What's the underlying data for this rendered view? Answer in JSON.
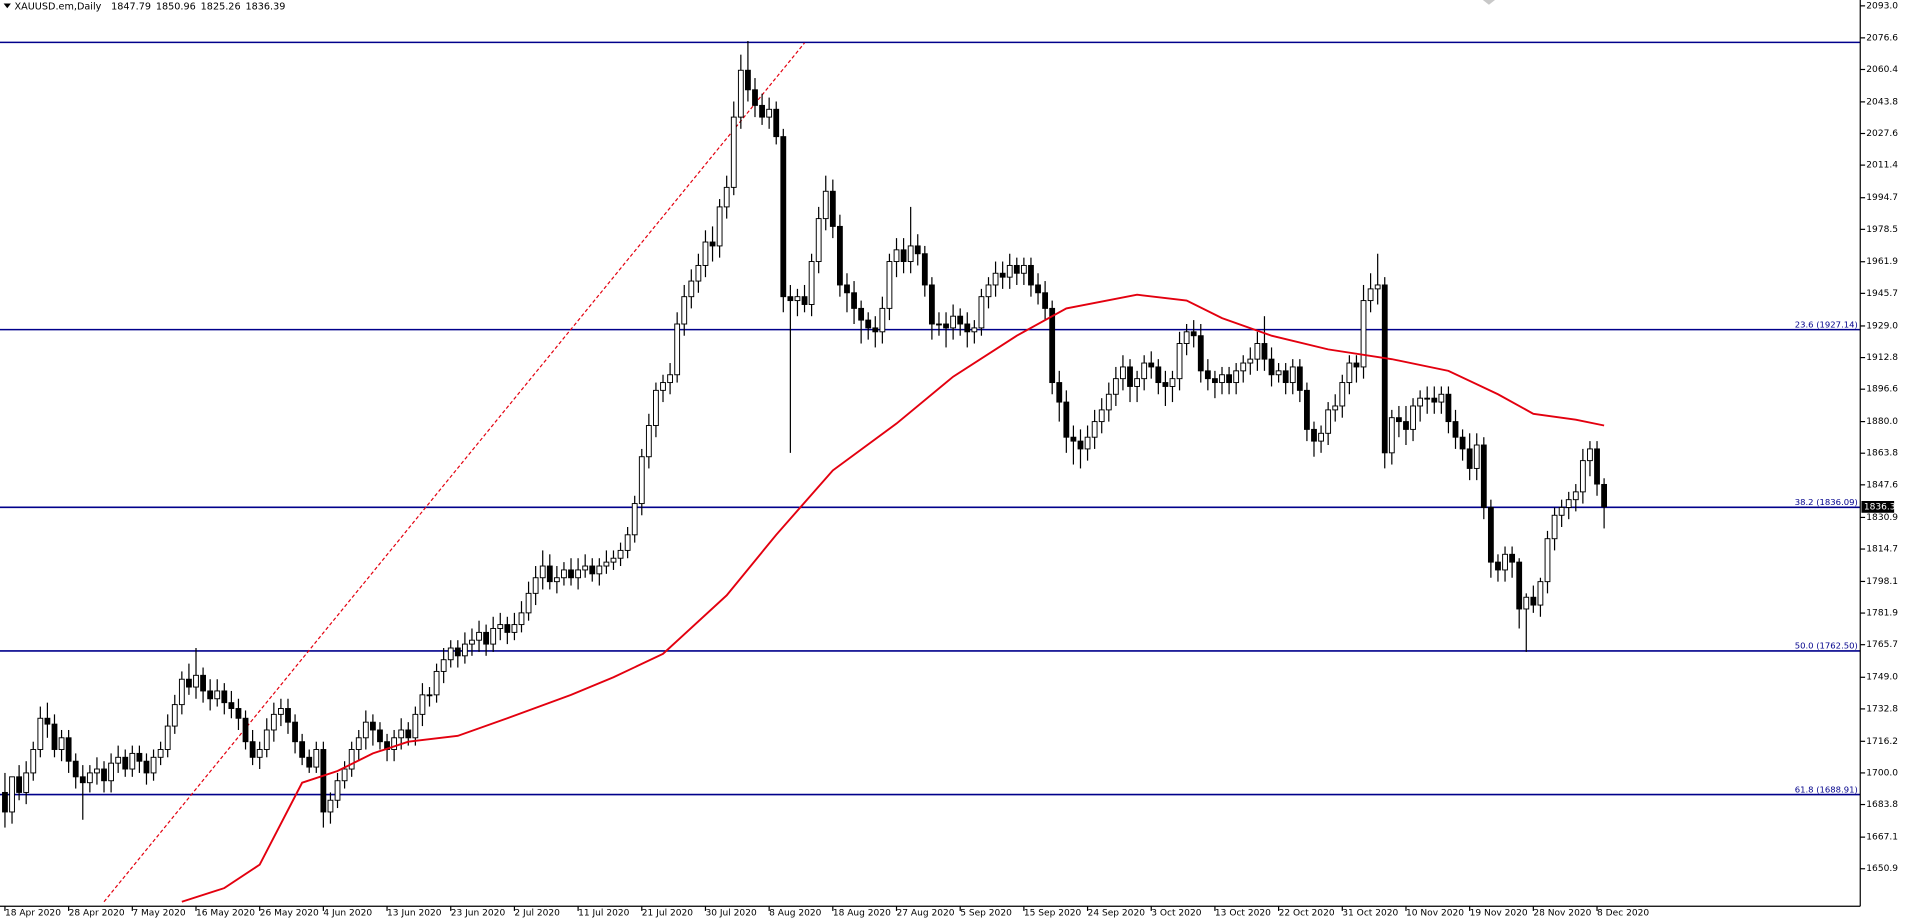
{
  "chart_data": {
    "type": "candlestick",
    "title": "XAUUSD.em,Daily",
    "header_values": [
      1847.79,
      1850.96,
      1825.26,
      1836.39
    ],
    "xlim": [
      -0.7,
      262.2
    ],
    "xticks": [
      {
        "value": 0,
        "label": "18 Apr 2020"
      },
      {
        "value": 9,
        "label": "28 Apr 2020"
      },
      {
        "value": 18,
        "label": "7 May 2020"
      },
      {
        "value": 27,
        "label": "16 May 2020"
      },
      {
        "value": 36,
        "label": "26 May 2020"
      },
      {
        "value": 45,
        "label": "4 Jun 2020"
      },
      {
        "value": 54,
        "label": "13 Jun 2020"
      },
      {
        "value": 63,
        "label": "23 Jun 2020"
      },
      {
        "value": 72,
        "label": "2 Jul 2020"
      },
      {
        "value": 81,
        "label": "11 Jul 2020"
      },
      {
        "value": 90,
        "label": "21 Jul 2020"
      },
      {
        "value": 99,
        "label": "30 Jul 2020"
      },
      {
        "value": 108,
        "label": "8 Aug 2020"
      },
      {
        "value": 117,
        "label": "18 Aug 2020"
      },
      {
        "value": 126,
        "label": "27 Aug 2020"
      },
      {
        "value": 135,
        "label": "5 Sep 2020"
      },
      {
        "value": 144,
        "label": "15 Sep 2020"
      },
      {
        "value": 153,
        "label": "24 Sep 2020"
      },
      {
        "value": 162,
        "label": "3 Oct 2020"
      },
      {
        "value": 171,
        "label": "13 Oct 2020"
      },
      {
        "value": 180,
        "label": "22 Oct 2020"
      },
      {
        "value": 189,
        "label": "31 Oct 2020"
      },
      {
        "value": 198,
        "label": "10 Nov 2020"
      },
      {
        "value": 207,
        "label": "19 Nov 2020"
      },
      {
        "value": 216,
        "label": "28 Nov 2020"
      },
      {
        "value": 225,
        "label": "8 Dec 2020"
      }
    ],
    "ylim": [
      1631.7,
      2096.0
    ],
    "yticks": [
      {
        "value": 2093,
        "label": "2093.0"
      },
      2076.6,
      2060.4,
      2043.8,
      2027.6,
      2011.4,
      1994.7,
      1978.5,
      1961.9,
      1945.7,
      {
        "value": 1929,
        "label": "1929.0"
      },
      1912.8,
      1896.6,
      {
        "value": 1880,
        "label": "1880.0"
      },
      1863.8,
      1847.6,
      1830.9,
      1814.7,
      1798.1,
      1781.9,
      1765.7,
      {
        "value": 1749,
        "label": "1749.0"
      },
      1732.8,
      1716.2,
      {
        "value": 1700,
        "label": "1700.0"
      },
      1683.8,
      1667.1,
      1650.9
    ],
    "candle_colors": {
      "up": "#ffffff",
      "down": "#000000",
      "wick": "#000000"
    },
    "open": [
      1690,
      1680,
      1698,
      1690,
      1700,
      1712,
      1728,
      1725,
      1712,
      1718,
      1706,
      1698,
      1695,
      1700,
      1702,
      1696,
      1705,
      1708,
      1702,
      1710,
      1706,
      1700,
      1708,
      1712,
      1724,
      1735,
      1748,
      1744,
      1750,
      1742,
      1738,
      1742,
      1736,
      1733,
      1728,
      1716,
      1708,
      1712,
      1722,
      1730,
      1733,
      1726,
      1716,
      1708,
      1703,
      1712,
      1680,
      1686,
      1696,
      1702,
      1712,
      1718,
      1726,
      1722,
      1716,
      1712,
      1718,
      1722,
      1718,
      1730,
      1740,
      1740,
      1752,
      1758,
      1764,
      1760,
      1766,
      1768,
      1772,
      1766,
      1774,
      1776,
      1772,
      1776,
      1782,
      1792,
      1800,
      1806,
      1798,
      1800,
      1804,
      1800,
      1804,
      1806,
      1802,
      1806,
      1808,
      1810,
      1814,
      1822,
      1838,
      1862,
      1878,
      1896,
      1900,
      1904,
      1930,
      1944,
      1952,
      1960,
      1972,
      1970,
      1990,
      2000,
      2036,
      2060,
      2050,
      2042,
      2036,
      2040,
      2026,
      1944,
      1942,
      1944,
      1940,
      1962,
      1984,
      1998,
      1980,
      1950,
      1946,
      1938,
      1932,
      1928,
      1926,
      1938,
      1962,
      1968,
      1962,
      1970,
      1966,
      1950,
      1930,
      1930,
      1928,
      1934,
      1930,
      1926,
      1928,
      1944,
      1950,
      1956,
      1954,
      1960,
      1956,
      1960,
      1950,
      1946,
      1938,
      1900,
      1890,
      1872,
      1870,
      1866,
      1872,
      1880,
      1886,
      1894,
      1902,
      1908,
      1898,
      1902,
      1910,
      1908,
      1900,
      1898,
      1902,
      1920,
      1926,
      1924,
      1906,
      1902,
      1900,
      1904,
      1900,
      1906,
      1910,
      1912,
      1920,
      1912,
      1904,
      1906,
      1900,
      1908,
      1896,
      1876,
      1870,
      1874,
      1886,
      1888,
      1900,
      1910,
      1908,
      1942,
      1948,
      1950,
      1864,
      1882,
      1880,
      1876,
      1888,
      1892,
      1892,
      1890,
      1894,
      1880,
      1872,
      1866,
      1856,
      1868,
      1836,
      1808,
      1804,
      1812,
      1808,
      1784,
      1790,
      1786,
      1798,
      1820,
      1832,
      1836,
      1840,
      1844,
      1860,
      1866,
      1847.79
    ],
    "high": [
      1700,
      1694,
      1704,
      1706,
      1716,
      1734,
      1736,
      1730,
      1722,
      1722,
      1710,
      1704,
      1704,
      1708,
      1706,
      1710,
      1714,
      1712,
      1714,
      1714,
      1710,
      1712,
      1716,
      1730,
      1740,
      1752,
      1756,
      1764,
      1754,
      1748,
      1748,
      1746,
      1742,
      1738,
      1732,
      1722,
      1716,
      1728,
      1736,
      1738,
      1738,
      1730,
      1720,
      1712,
      1716,
      1716,
      1690,
      1700,
      1706,
      1716,
      1722,
      1732,
      1730,
      1726,
      1720,
      1722,
      1728,
      1726,
      1734,
      1746,
      1744,
      1756,
      1764,
      1768,
      1768,
      1772,
      1774,
      1778,
      1776,
      1780,
      1782,
      1780,
      1782,
      1788,
      1798,
      1806,
      1814,
      1812,
      1806,
      1808,
      1810,
      1810,
      1812,
      1810,
      1810,
      1814,
      1814,
      1818,
      1826,
      1842,
      1866,
      1884,
      1900,
      1904,
      1910,
      1936,
      1950,
      1958,
      1966,
      1978,
      1980,
      1994,
      2006,
      2044,
      2068,
      2075,
      2056,
      2048,
      2046,
      2044,
      2030,
      1950,
      1948,
      1950,
      1966,
      1990,
      2006,
      2004,
      1986,
      1956,
      1952,
      1942,
      1936,
      1934,
      1944,
      1966,
      1974,
      1974,
      1990,
      1976,
      1970,
      1954,
      1936,
      1936,
      1940,
      1938,
      1936,
      1932,
      1948,
      1954,
      1962,
      1962,
      1966,
      1964,
      1964,
      1964,
      1956,
      1952,
      1942,
      1906,
      1896,
      1878,
      1876,
      1878,
      1886,
      1892,
      1900,
      1908,
      1914,
      1912,
      1906,
      1914,
      1916,
      1912,
      1906,
      1906,
      1926,
      1930,
      1932,
      1930,
      1912,
      1906,
      1908,
      1908,
      1910,
      1914,
      1918,
      1926,
      1934,
      1918,
      1910,
      1910,
      1912,
      1912,
      1900,
      1880,
      1878,
      1890,
      1894,
      1904,
      1914,
      1914,
      1950,
      1956,
      1966,
      1954,
      1886,
      1888,
      1888,
      1892,
      1896,
      1898,
      1898,
      1898,
      1898,
      1886,
      1876,
      1874,
      1874,
      1872,
      1840,
      1812,
      1816,
      1816,
      1810,
      1792,
      1796,
      1800,
      1824,
      1836,
      1840,
      1844,
      1848,
      1866,
      1870,
      1870,
      1850.96
    ],
    "low": [
      1672,
      1674,
      1686,
      1684,
      1696,
      1708,
      1718,
      1708,
      1706,
      1700,
      1692,
      1676,
      1690,
      1694,
      1690,
      1690,
      1700,
      1698,
      1698,
      1700,
      1694,
      1696,
      1704,
      1708,
      1720,
      1730,
      1740,
      1738,
      1736,
      1732,
      1734,
      1730,
      1728,
      1722,
      1712,
      1704,
      1702,
      1708,
      1716,
      1724,
      1720,
      1710,
      1704,
      1700,
      1700,
      1672,
      1674,
      1682,
      1692,
      1698,
      1706,
      1712,
      1714,
      1712,
      1706,
      1706,
      1712,
      1714,
      1714,
      1724,
      1734,
      1736,
      1746,
      1754,
      1754,
      1756,
      1760,
      1762,
      1760,
      1762,
      1768,
      1766,
      1768,
      1772,
      1778,
      1786,
      1794,
      1794,
      1792,
      1796,
      1796,
      1794,
      1800,
      1798,
      1796,
      1802,
      1804,
      1806,
      1810,
      1818,
      1832,
      1856,
      1872,
      1890,
      1894,
      1900,
      1924,
      1938,
      1946,
      1954,
      1962,
      1964,
      1984,
      1996,
      2030,
      2044,
      2036,
      2032,
      2030,
      2022,
      1936,
      1864,
      1934,
      1936,
      1934,
      1956,
      1978,
      1974,
      1944,
      1936,
      1930,
      1920,
      1922,
      1918,
      1920,
      1932,
      1954,
      1956,
      1956,
      1960,
      1944,
      1922,
      1924,
      1918,
      1922,
      1924,
      1918,
      1920,
      1924,
      1938,
      1944,
      1948,
      1948,
      1950,
      1950,
      1944,
      1940,
      1932,
      1894,
      1880,
      1864,
      1858,
      1856,
      1860,
      1866,
      1874,
      1880,
      1888,
      1896,
      1890,
      1890,
      1896,
      1902,
      1894,
      1888,
      1890,
      1896,
      1914,
      1918,
      1900,
      1896,
      1892,
      1894,
      1894,
      1894,
      1900,
      1904,
      1906,
      1906,
      1898,
      1900,
      1894,
      1894,
      1890,
      1870,
      1862,
      1864,
      1868,
      1880,
      1882,
      1894,
      1900,
      1902,
      1936,
      1940,
      1856,
      1858,
      1872,
      1868,
      1870,
      1880,
      1884,
      1884,
      1884,
      1874,
      1866,
      1860,
      1850,
      1850,
      1830,
      1800,
      1798,
      1798,
      1800,
      1774,
      1762,
      1782,
      1780,
      1792,
      1814,
      1826,
      1830,
      1834,
      1838,
      1852,
      1842,
      1825.26
    ],
    "close": [
      1680,
      1698,
      1690,
      1700,
      1712,
      1728,
      1725,
      1712,
      1718,
      1706,
      1698,
      1695,
      1700,
      1702,
      1696,
      1705,
      1708,
      1702,
      1710,
      1706,
      1700,
      1708,
      1712,
      1724,
      1735,
      1748,
      1744,
      1750,
      1742,
      1738,
      1742,
      1736,
      1733,
      1728,
      1716,
      1708,
      1712,
      1722,
      1730,
      1733,
      1726,
      1716,
      1708,
      1703,
      1712,
      1680,
      1686,
      1696,
      1702,
      1712,
      1718,
      1726,
      1722,
      1716,
      1712,
      1718,
      1722,
      1718,
      1730,
      1740,
      1740,
      1752,
      1758,
      1764,
      1760,
      1766,
      1768,
      1772,
      1766,
      1774,
      1776,
      1772,
      1776,
      1782,
      1792,
      1800,
      1806,
      1798,
      1800,
      1804,
      1800,
      1804,
      1806,
      1802,
      1806,
      1808,
      1810,
      1814,
      1822,
      1838,
      1862,
      1878,
      1896,
      1900,
      1904,
      1930,
      1944,
      1952,
      1960,
      1972,
      1970,
      1990,
      2000,
      2036,
      2060,
      2050,
      2042,
      2036,
      2040,
      2026,
      1944,
      1942,
      1944,
      1940,
      1962,
      1984,
      1998,
      1980,
      1950,
      1946,
      1938,
      1932,
      1928,
      1926,
      1938,
      1962,
      1968,
      1962,
      1970,
      1966,
      1950,
      1930,
      1930,
      1928,
      1934,
      1930,
      1926,
      1928,
      1944,
      1950,
      1956,
      1954,
      1960,
      1956,
      1960,
      1950,
      1946,
      1938,
      1900,
      1890,
      1872,
      1870,
      1866,
      1872,
      1880,
      1886,
      1894,
      1902,
      1908,
      1898,
      1902,
      1910,
      1908,
      1900,
      1898,
      1902,
      1920,
      1926,
      1924,
      1906,
      1902,
      1900,
      1904,
      1900,
      1906,
      1910,
      1912,
      1920,
      1912,
      1904,
      1906,
      1900,
      1908,
      1896,
      1876,
      1870,
      1874,
      1886,
      1888,
      1900,
      1910,
      1908,
      1942,
      1948,
      1950,
      1864,
      1882,
      1880,
      1876,
      1888,
      1892,
      1892,
      1890,
      1894,
      1880,
      1872,
      1866,
      1856,
      1868,
      1836,
      1808,
      1804,
      1812,
      1808,
      1784,
      1790,
      1786,
      1798,
      1820,
      1832,
      1836,
      1840,
      1844,
      1860,
      1866,
      1848,
      1836.39
    ],
    "ma": {
      "color": "#e3000f",
      "x": [
        25,
        31,
        36,
        42,
        47,
        52,
        57,
        64,
        71,
        80,
        86,
        93,
        102,
        109,
        117,
        126,
        134,
        143,
        150,
        160,
        167,
        172,
        179,
        187,
        196,
        204,
        211,
        216,
        222,
        226
      ],
      "values": [
        1634,
        1641,
        1653,
        1695,
        1701,
        1710,
        1716,
        1719,
        1728,
        1740,
        1749,
        1761,
        1791,
        1822,
        1855,
        1879,
        1903,
        1924,
        1938,
        1945,
        1942,
        1933,
        1924,
        1917,
        1912,
        1906,
        1894,
        1884,
        1881,
        1878
      ]
    },
    "trendline": {
      "color": "#e3000f",
      "x": [
        14,
        113
      ],
      "values": [
        1634,
        2074
      ]
    },
    "level_color": "#00008b",
    "levels": [
      {
        "value": 2074.3
      },
      {
        "value": 1927.14,
        "label": "23.6  (1927.14)"
      },
      {
        "value": 1836.09,
        "label": "38.2  (1836.09)"
      },
      {
        "value": 1762.5,
        "label": "50.0  (1762.50)"
      },
      {
        "value": 1688.91,
        "label": "61.8  (1688.91)"
      }
    ],
    "current_price": 1836.3
  }
}
